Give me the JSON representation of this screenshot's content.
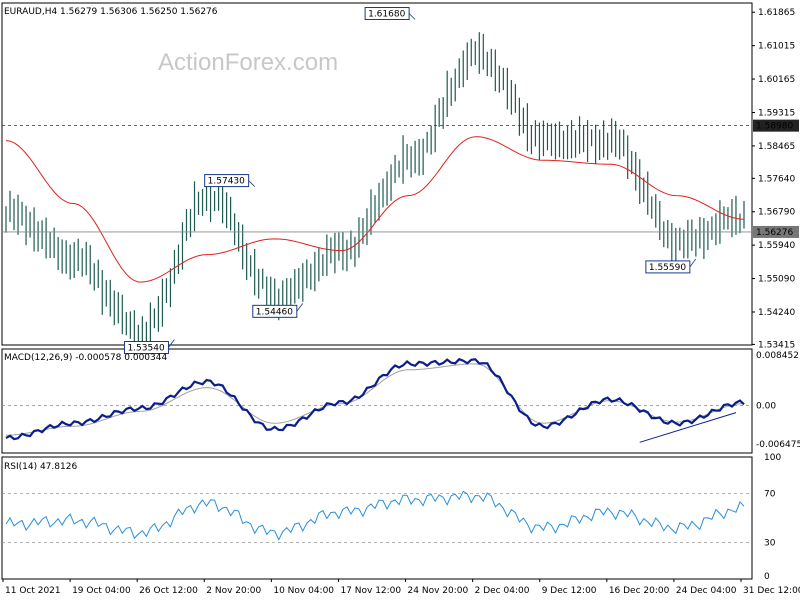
{
  "watermark": "ActionForex.com",
  "main": {
    "header": "EURAUD,H4  1.56279 1.56306 1.56250 1.56276",
    "price_ticks": [
      "1.61865",
      "1.61015",
      "1.60165",
      "1.59315",
      "1.58465",
      "1.57640",
      "1.56790",
      "1.55940",
      "1.55090",
      "1.54240",
      "1.53415"
    ],
    "hline_label": "1.58980",
    "current_label": "1.56276",
    "callouts": [
      "1.61680",
      "1.57430",
      "1.54460",
      "1.53540",
      "1.55590"
    ]
  },
  "macd": {
    "header": "MACD(12,26,9) -0.000578 0.000344",
    "ticks": [
      "0.008452",
      "0.00",
      "-0.006475"
    ],
    "current_label": "0.00"
  },
  "rsi": {
    "header": "RSI(14) 47.8126",
    "ticks": [
      "100",
      "70",
      "30",
      "0"
    ]
  },
  "time_labels": [
    "11 Oct 2021",
    "19 Oct 04:00",
    "26 Oct 12:00",
    "2 Nov 20:00",
    "10 Nov 04:00",
    "17 Nov 12:00",
    "24 Nov 20:00",
    "2 Dec 04:00",
    "9 Dec 12:00",
    "16 Dec 20:00",
    "24 Dec 04:00",
    "31 Dec 12:00"
  ],
  "colors": {
    "bar": "#1e5a50",
    "ma": "#e02020",
    "macd": "#0a1e8c",
    "signal": "#a0a0a0",
    "rsi": "#2a8fd8",
    "grid": "#9a9a9a"
  },
  "chart_data": [
    {
      "type": "line",
      "title": "EURAUD,H4",
      "x": [
        "11 Oct 2021",
        "19 Oct 04:00",
        "26 Oct 12:00",
        "2 Nov 20:00",
        "10 Nov 04:00",
        "17 Nov 12:00",
        "24 Nov 20:00",
        "2 Dec 04:00",
        "9 Dec 12:00",
        "16 Dec 20:00",
        "24 Dec 04:00",
        "31 Dec 12:00"
      ],
      "series": [
        {
          "values": [
            1.5675,
            1.556,
            1.537,
            1.572,
            1.546,
            1.558,
            1.581,
            1.608,
            1.586,
            1.586,
            1.56,
            1.567
          ]
        },
        {
          "values": [
            1.586,
            1.57,
            1.55,
            1.557,
            1.561,
            1.558,
            1.572,
            1.587,
            1.581,
            1.58,
            1.572,
            1.566
          ]
        }
      ],
      "annotations": [
        "1.61680",
        "1.57430",
        "1.54460",
        "1.53540",
        "1.55590"
      ],
      "horizontal_line": 1.5898,
      "ylim": [
        1.534,
        1.621
      ]
    },
    {
      "type": "line",
      "title": "MACD(12,26,9) -0.000578 0.000344",
      "x": [
        "11 Oct 2021",
        "19 Oct 04:00",
        "26 Oct 12:00",
        "2 Nov 20:00",
        "10 Nov 04:00",
        "17 Nov 12:00",
        "24 Nov 20:00",
        "2 Dec 04:00",
        "9 Dec 12:00",
        "16 Dec 20:00",
        "24 Dec 04:00",
        "31 Dec 12:00"
      ],
      "series": [
        {
          "values": [
            -0.0055,
            -0.003,
            -0.0005,
            0.004,
            -0.004,
            0.0005,
            0.007,
            0.0075,
            -0.0035,
            0.001,
            -0.003,
            0.0005
          ]
        },
        {
          "values": [
            -0.005,
            -0.0035,
            -0.001,
            0.003,
            -0.003,
            0.0003,
            0.006,
            0.007,
            -0.003,
            0.0008,
            -0.0028,
            0.0003
          ]
        }
      ],
      "ylim": [
        -0.008,
        0.0095
      ]
    },
    {
      "type": "line",
      "title": "RSI(14) 47.8126",
      "x": [
        "11 Oct 2021",
        "19 Oct 04:00",
        "26 Oct 12:00",
        "2 Nov 20:00",
        "10 Nov 04:00",
        "17 Nov 12:00",
        "24 Nov 20:00",
        "2 Dec 04:00",
        "9 Dec 12:00",
        "16 Dec 20:00",
        "24 Dec 04:00",
        "31 Dec 12:00"
      ],
      "series": [
        {
          "values": [
            45,
            48,
            38,
            62,
            38,
            55,
            65,
            68,
            42,
            55,
            42,
            58
          ]
        }
      ],
      "ylim": [
        0,
        100
      ],
      "levels": [
        70,
        30
      ]
    }
  ]
}
